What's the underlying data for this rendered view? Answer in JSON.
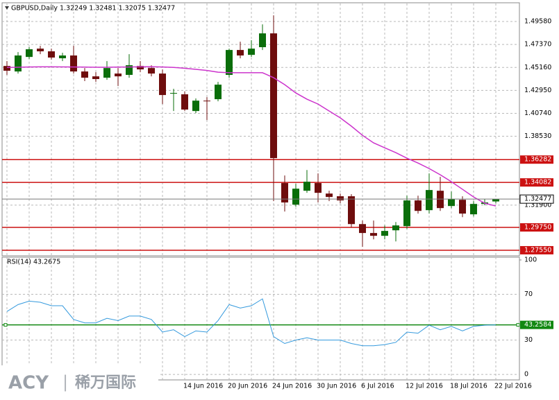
{
  "chart_data": [
    {
      "type": "candlestick",
      "title": "GBPUSD,Daily  1.32249 1.32481 1.32075 1.32477",
      "categories": [
        null,
        null,
        null,
        null,
        null,
        null,
        null,
        null,
        null,
        null,
        null,
        null,
        null,
        null,
        null,
        null,
        "14 Jun 2016",
        null,
        null,
        null,
        "20 Jun 2016",
        null,
        null,
        null,
        "24 Jun 2016",
        null,
        null,
        null,
        "30 Jun 2016",
        null,
        null,
        null,
        "6 Jul 2016",
        null,
        null,
        null,
        "12 Jul 2016",
        null,
        null,
        null,
        "18 Jul 2016",
        null,
        null,
        null,
        "22 Jul 2016"
      ],
      "open": [
        1.453,
        1.4477,
        1.4617,
        1.4697,
        1.4671,
        1.4604,
        1.4631,
        1.4477,
        1.443,
        1.4417,
        1.4457,
        1.4444,
        1.453,
        1.451,
        1.4457,
        1.4263,
        1.4257,
        1.4096,
        1.4196,
        1.421,
        1.4444,
        1.4684,
        1.4637,
        1.4711,
        1.4844,
        1.3402,
        1.3194,
        1.3328,
        1.3402,
        1.3301,
        1.3275,
        1.3275,
        1.3007,
        1.2921,
        1.2894,
        1.2947,
        1.2987,
        1.3235,
        1.3141,
        1.3328,
        1.3181,
        1.3241,
        1.3101,
        1.3201,
        1.32249
      ],
      "high": [
        1.4577,
        1.4664,
        1.4711,
        1.4724,
        1.4697,
        1.4657,
        1.4724,
        1.451,
        1.447,
        1.4577,
        1.451,
        1.4644,
        1.4577,
        1.4537,
        1.4497,
        1.431,
        1.4283,
        1.4217,
        1.423,
        1.4377,
        1.4697,
        1.4764,
        1.4778,
        1.4931,
        1.5018,
        1.3475,
        1.3395,
        1.3528,
        1.3495,
        1.3328,
        1.3301,
        1.3295,
        1.3041,
        1.3041,
        1.2994,
        1.3027,
        1.3281,
        1.3281,
        1.3495,
        1.3462,
        1.3321,
        1.3275,
        1.3228,
        1.3248,
        1.32481
      ],
      "low": [
        1.4444,
        1.4457,
        1.4597,
        1.4644,
        1.4591,
        1.4577,
        1.4457,
        1.4384,
        1.4377,
        1.4397,
        1.4337,
        1.4417,
        1.447,
        1.443,
        1.4163,
        1.4096,
        1.4096,
        1.4076,
        1.4009,
        1.419,
        1.4417,
        1.4604,
        1.4617,
        1.4684,
        1.3228,
        1.3128,
        1.3174,
        1.3308,
        1.3215,
        1.3228,
        1.3208,
        1.2974,
        1.2787,
        1.286,
        1.286,
        1.284,
        1.2961,
        1.3108,
        1.3108,
        1.3134,
        1.3161,
        1.3074,
        1.3081,
        1.3188,
        1.32075
      ],
      "close": [
        1.4484,
        1.4631,
        1.4691,
        1.4671,
        1.4611,
        1.4631,
        1.4477,
        1.4417,
        1.4404,
        1.451,
        1.443,
        1.4537,
        1.4497,
        1.4457,
        1.425,
        1.427,
        1.411,
        1.4196,
        1.419,
        1.435,
        1.4684,
        1.4631,
        1.4697,
        1.4844,
        1.3642,
        1.3215,
        1.3348,
        1.3415,
        1.3308,
        1.3268,
        1.3235,
        1.3007,
        1.2921,
        1.2894,
        1.2941,
        1.2994,
        1.3235,
        1.3134,
        1.3335,
        1.3161,
        1.3248,
        1.3108,
        1.3201,
        1.3215,
        1.32477
      ],
      "up_color": "#0a6e0a",
      "down_color": "#6e0d0d",
      "ma": {
        "color": "#cc33cc",
        "values": [
          1.4516,
          1.4518,
          1.452,
          1.4522,
          1.4522,
          1.4521,
          1.452,
          1.4519,
          1.4518,
          1.4518,
          1.4519,
          1.452,
          1.4522,
          1.4523,
          1.452,
          1.4516,
          1.4508,
          1.4498,
          1.4487,
          1.447,
          1.4465,
          1.4465,
          1.4465,
          1.4465,
          1.4417,
          1.435,
          1.427,
          1.421,
          1.4163,
          1.4096,
          1.403,
          1.395,
          1.3862,
          1.3789,
          1.3742,
          1.3695,
          1.3642,
          1.3595,
          1.3542,
          1.3482,
          1.3415,
          1.3342,
          1.3268,
          1.3208,
          1.3181
        ]
      },
      "levels": [
        {
          "value": 1.36282,
          "label": "1.36282"
        },
        {
          "value": 1.34082,
          "label": "1.34082"
        },
        {
          "value": 1.2975,
          "label": "1.29750"
        },
        {
          "value": 1.2755,
          "label": "1.27550"
        }
      ],
      "level_color": "#cc1111",
      "ylim": [
        1.2708,
        1.5112
      ],
      "yticks": [
        {
          "value": 1.4958,
          "label": "1.49580"
        },
        {
          "value": 1.4737,
          "label": "1.47370"
        },
        {
          "value": 1.4516,
          "label": "1.45160"
        },
        {
          "value": 1.4295,
          "label": "1.42950"
        },
        {
          "value": 1.4074,
          "label": "1.40740"
        },
        {
          "value": 1.3853,
          "label": "1.38530"
        },
        {
          "value": 1.319,
          "label": "1.31900"
        }
      ],
      "grid": true
    },
    {
      "type": "line",
      "title": "RSI(14) 43.2675",
      "color": "#3399dd",
      "values": [
        55,
        61,
        64,
        63,
        60,
        60,
        48,
        45,
        45,
        49,
        47,
        51,
        51,
        48,
        37,
        39,
        33,
        38,
        37,
        47,
        61,
        58,
        60,
        66,
        33,
        27,
        30,
        32,
        30,
        30,
        30,
        27,
        25,
        25,
        26,
        28,
        37,
        36,
        43,
        39,
        42,
        38,
        42,
        43,
        43.2675
      ],
      "level": 43.2584,
      "level_color": "#118811",
      "ylim": [
        -4.8,
        102.4
      ],
      "yticks": [
        0,
        30,
        70,
        100
      ],
      "grid": true
    }
  ],
  "watermark": {
    "brand": "ACY",
    "separator": "|",
    "name": "稀万国际"
  }
}
